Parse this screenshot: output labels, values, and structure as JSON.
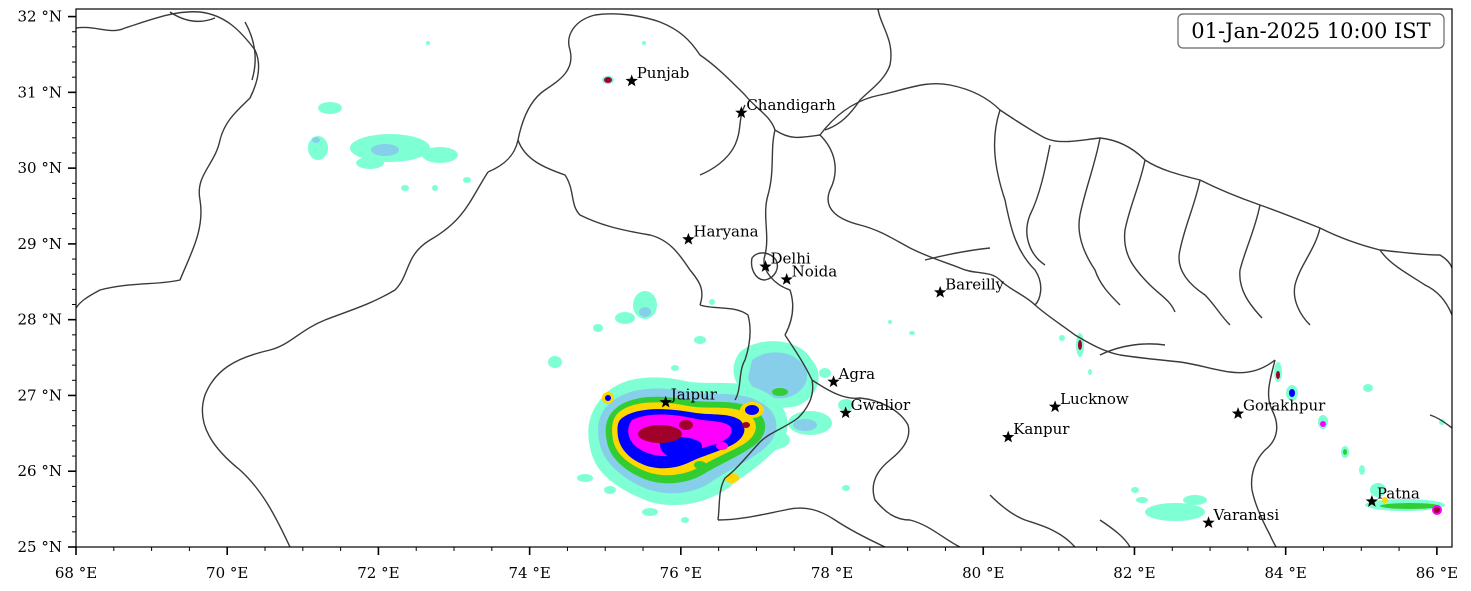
{
  "timestamp": "01-Jan-2025 10:00 IST",
  "axes": {
    "x_ticks": [
      {
        "value": 68,
        "label": "68 °E"
      },
      {
        "value": 70,
        "label": "70 °E"
      },
      {
        "value": 72,
        "label": "72 °E"
      },
      {
        "value": 74,
        "label": "74 °E"
      },
      {
        "value": 76,
        "label": "76 °E"
      },
      {
        "value": 78,
        "label": "78 °E"
      },
      {
        "value": 80,
        "label": "80 °E"
      },
      {
        "value": 82,
        "label": "82 °E"
      },
      {
        "value": 84,
        "label": "84 °E"
      },
      {
        "value": 86,
        "label": "86 °E"
      }
    ],
    "y_ticks": [
      {
        "value": 25,
        "label": "25 °N"
      },
      {
        "value": 26,
        "label": "26 °N"
      },
      {
        "value": 27,
        "label": "27 °N"
      },
      {
        "value": 28,
        "label": "28 °N"
      },
      {
        "value": 29,
        "label": "29 °N"
      },
      {
        "value": 30,
        "label": "30 °N"
      },
      {
        "value": 31,
        "label": "31 °N"
      },
      {
        "value": 32,
        "label": "32 °N"
      }
    ],
    "lon_range": [
      68,
      86.2
    ],
    "lat_range": [
      25,
      32.1
    ]
  },
  "cities": [
    {
      "name": "Punjab",
      "lon": 75.35,
      "lat": 31.15
    },
    {
      "name": "Chandigarh",
      "lon": 76.8,
      "lat": 30.73
    },
    {
      "name": "Haryana",
      "lon": 76.1,
      "lat": 29.06
    },
    {
      "name": "Delhi",
      "lon": 77.12,
      "lat": 28.7
    },
    {
      "name": "Noida",
      "lon": 77.4,
      "lat": 28.53
    },
    {
      "name": "Bareilly",
      "lon": 79.43,
      "lat": 28.36
    },
    {
      "name": "Agra",
      "lon": 78.02,
      "lat": 27.18
    },
    {
      "name": "Jaipur",
      "lon": 75.8,
      "lat": 26.91
    },
    {
      "name": "Gwalior",
      "lon": 78.18,
      "lat": 26.77
    },
    {
      "name": "Lucknow",
      "lon": 80.95,
      "lat": 26.85
    },
    {
      "name": "Kanpur",
      "lon": 80.33,
      "lat": 26.45
    },
    {
      "name": "Gorakhpur",
      "lon": 83.37,
      "lat": 26.76
    },
    {
      "name": "Varanasi",
      "lon": 82.98,
      "lat": 25.32
    },
    {
      "name": "Patna",
      "lon": 85.14,
      "lat": 25.6
    }
  ],
  "colors": {
    "c1": "#7fffd4",
    "c2": "#87ceeb",
    "c3": "#32cd32",
    "c4": "#ffd700",
    "c5": "#0000ff",
    "c6": "#ff00ff",
    "c7": "#a0002a",
    "border": "#3a3a3a"
  }
}
